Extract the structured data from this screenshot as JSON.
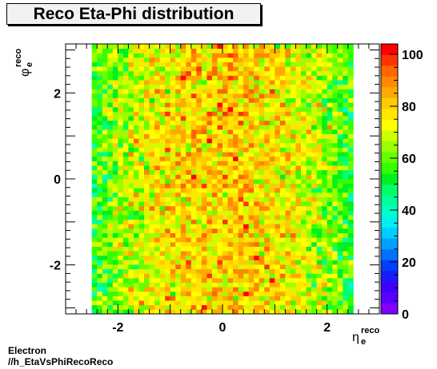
{
  "chart_data": {
    "type": "heatmap",
    "title": "Reco Eta-Phi distribution",
    "xlabel": "η",
    "xlabel_sub": "e",
    "xlabel_sup": "reco",
    "ylabel": "φ",
    "ylabel_sub": "e",
    "ylabel_sup": "reco",
    "xlim": [
      -3.0,
      3.0
    ],
    "ylim": [
      -3.14,
      3.14
    ],
    "x_ticks": [
      -2,
      0,
      2
    ],
    "y_ticks": [
      -2,
      0,
      2
    ],
    "z_ticks": [
      0,
      20,
      40,
      60,
      80,
      100
    ],
    "zlim": [
      0,
      104
    ],
    "data_x_range": [
      -2.5,
      2.5
    ],
    "bins_x": 50,
    "bins_y": 60,
    "grid": false,
    "palette": [
      "#7f00ff",
      "#5a00ff",
      "#3f00ff",
      "#1a1aff",
      "#0040ff",
      "#0070ff",
      "#00a0ff",
      "#00ccff",
      "#00f0f0",
      "#00ffc8",
      "#00ff9a",
      "#00ff66",
      "#00f020",
      "#33ff00",
      "#66ff00",
      "#99ff00",
      "#ccff00",
      "#ffff00",
      "#ffe600",
      "#ffcc00",
      "#ffaa00",
      "#ff8800",
      "#ff6600",
      "#ff3300",
      "#ff0000"
    ]
  },
  "footer": {
    "line1": "Electron",
    "line2": "//h_EtaVsPhiRecoReco"
  }
}
